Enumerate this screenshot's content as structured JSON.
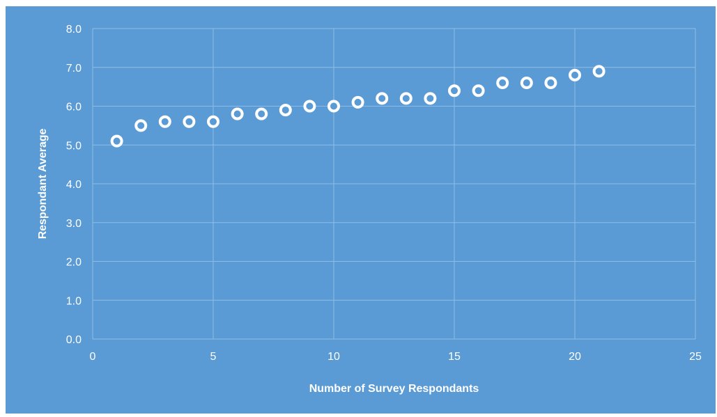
{
  "chart_data": {
    "type": "scatter",
    "title": "",
    "xlabel": "Number of Survey Respondants",
    "ylabel": "Respondant Average",
    "xlim": [
      0,
      25
    ],
    "ylim": [
      0,
      8
    ],
    "x_ticks": [
      0,
      5,
      10,
      15,
      20,
      25
    ],
    "y_ticks": [
      "0.0",
      "1.0",
      "2.0",
      "3.0",
      "4.0",
      "5.0",
      "6.0",
      "7.0",
      "8.0"
    ],
    "grid": true,
    "legend": "none",
    "colors": {
      "background": "#5b9bd5",
      "marker_fill": "#5b9bd5",
      "marker_stroke": "#ffffff",
      "gridline": "#8fbce6"
    },
    "series": [
      {
        "x": [
          1,
          2,
          3,
          4,
          5,
          6,
          7,
          8,
          9,
          10,
          11,
          12,
          13,
          14,
          15,
          16,
          17,
          18,
          19,
          20,
          21
        ],
        "y": [
          5.1,
          5.5,
          5.6,
          5.6,
          5.6,
          5.8,
          5.8,
          5.9,
          6.0,
          6.0,
          6.1,
          6.2,
          6.2,
          6.2,
          6.4,
          6.4,
          6.6,
          6.6,
          6.6,
          6.8,
          6.9
        ]
      }
    ]
  }
}
